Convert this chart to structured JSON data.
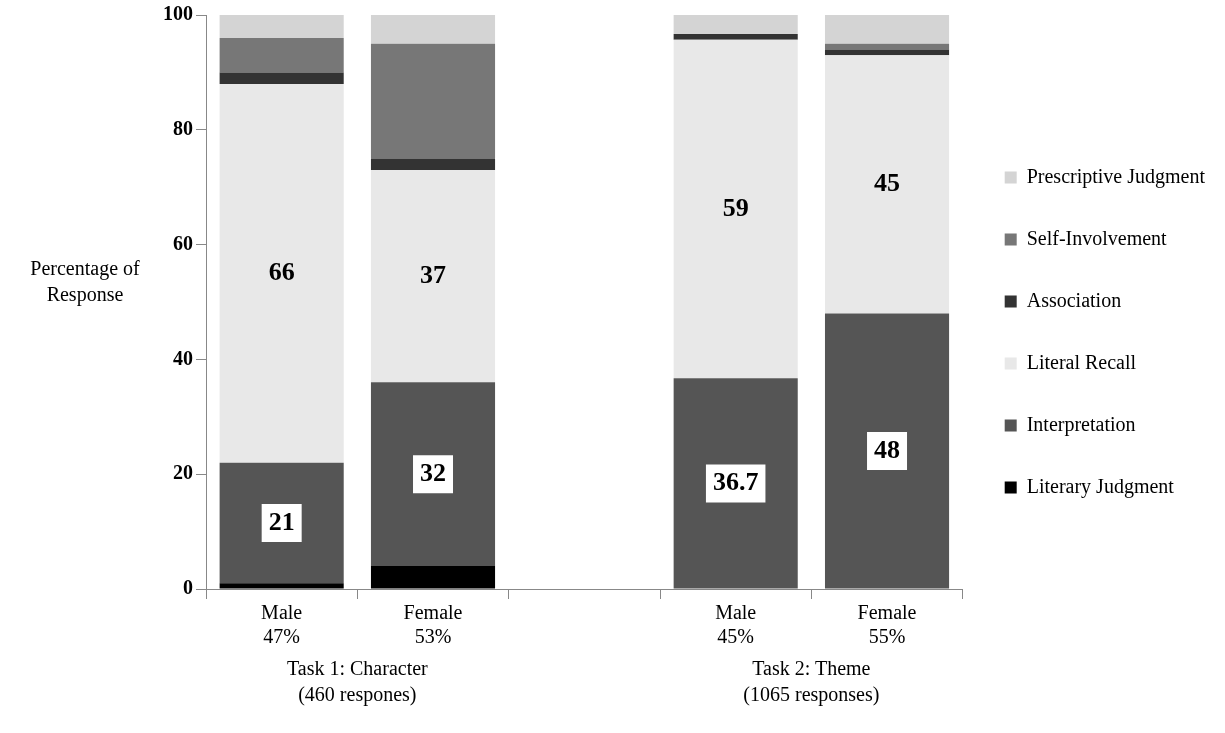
{
  "chart_data": {
    "type": "bar",
    "stacked": true,
    "ylabel": "Percentage of Response",
    "categories": [
      "Male\n47%",
      "Female\n53%",
      null,
      "Male\n45%",
      "Female\n55%"
    ],
    "series": [
      {
        "name": "Literary Judgment",
        "color": "#000000",
        "values": [
          1,
          4,
          null,
          0,
          0
        ]
      },
      {
        "name": "Interpretation",
        "color": "#555555",
        "values": [
          21,
          32,
          null,
          36.7,
          48
        ],
        "value_labels": [
          "21",
          "32",
          null,
          "36.7",
          "48"
        ]
      },
      {
        "name": "Literal Recall",
        "color": "#e8e8e8",
        "values": [
          66,
          37,
          null,
          59,
          45
        ],
        "value_labels": [
          "66",
          "37",
          null,
          "59",
          "45"
        ]
      },
      {
        "name": "Association",
        "color": "#333333",
        "values": [
          2,
          2,
          null,
          1,
          1
        ]
      },
      {
        "name": "Self-Involvement",
        "color": "#777777",
        "values": [
          6,
          20,
          null,
          0,
          1
        ]
      },
      {
        "name": "Prescriptive Judgment",
        "color": "#d4d4d4",
        "values": [
          4,
          5,
          null,
          3.3,
          5
        ]
      }
    ],
    "ylim": [
      0,
      100
    ],
    "yticks": [
      0,
      20,
      40,
      60,
      80,
      100
    ],
    "grid": false,
    "legend": "right",
    "annotations": [
      "Task 1: Character\n(460 respones)",
      "Task 2: Theme\n(1065 responses)"
    ]
  }
}
